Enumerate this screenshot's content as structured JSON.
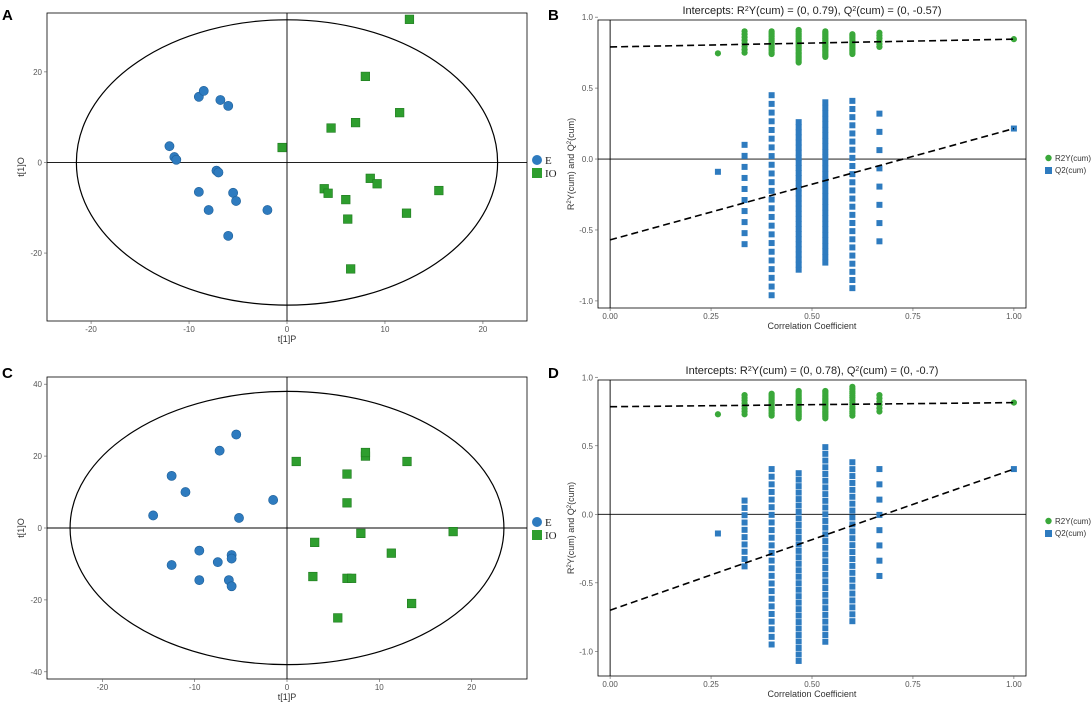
{
  "colors": {
    "group_E": "#2e7bbf",
    "group_IO": "#2e9e2e",
    "r2y": "#3aa83a",
    "q2": "#2e7bbf",
    "frame": "#000000"
  },
  "chart_data": [
    {
      "panel": "A",
      "type": "scatter",
      "xlabel": "t[1]P",
      "ylabel": "t[1]O",
      "xlim": [
        -24.5,
        24.5
      ],
      "ylim": [
        -35,
        33
      ],
      "xticks": [
        -20,
        -10,
        0,
        10,
        20
      ],
      "yticks": [
        -20,
        0,
        20
      ],
      "ellipse": {
        "rx": 21.5,
        "ry": 31.5
      },
      "legend": [
        "E",
        "IO"
      ],
      "series": [
        {
          "name": "E",
          "marker": "circle",
          "points": [
            [
              -12,
              3.6
            ],
            [
              -11.5,
              1.2
            ],
            [
              -11.3,
              0.6
            ],
            [
              -9,
              14.5
            ],
            [
              -8.5,
              15.8
            ],
            [
              -6.8,
              13.8
            ],
            [
              -6,
              12.5
            ],
            [
              -7.2,
              -1.8
            ],
            [
              -7,
              -2.2
            ],
            [
              -9,
              -6.5
            ],
            [
              -8,
              -10.5
            ],
            [
              -5.5,
              -6.7
            ],
            [
              -5.2,
              -8.5
            ],
            [
              -2,
              -10.5
            ],
            [
              -6,
              -16.2
            ]
          ]
        },
        {
          "name": "IO",
          "marker": "square",
          "points": [
            [
              -0.5,
              3.3
            ],
            [
              4.5,
              7.6
            ],
            [
              7,
              8.8
            ],
            [
              8,
              19
            ],
            [
              11.5,
              11
            ],
            [
              12.5,
              31.6
            ],
            [
              3.8,
              -5.8
            ],
            [
              4.2,
              -6.8
            ],
            [
              6,
              -8.2
            ],
            [
              6.2,
              -12.5
            ],
            [
              8.5,
              -3.5
            ],
            [
              9.2,
              -4.7
            ],
            [
              12.2,
              -11.2
            ],
            [
              15.5,
              -6.2
            ],
            [
              6.5,
              -23.5
            ]
          ]
        }
      ]
    },
    {
      "panel": "B",
      "type": "scatter",
      "title_prefix": "Intercepts: R",
      "title_sup1": "2",
      "title_mid": "Y(cum) = (0, 0.79), Q",
      "title_sup2": "2",
      "title_suffix": "(cum) = (0, -0.57)",
      "xlabel": "Correlation Coefficient",
      "ylabel_parts": [
        "R",
        "2",
        "Y(cum) and Q",
        "2",
        "(cum)"
      ],
      "xlim": [
        -0.03,
        1.03
      ],
      "ylim": [
        -1.05,
        0.98
      ],
      "xticks": [
        "0.00",
        "0.25",
        "0.50",
        "0.75",
        "1.00"
      ],
      "yticks": [
        "-1.0",
        "-0.5",
        "0.0",
        "0.5",
        "1.0"
      ],
      "legend": [
        "R2Y(cum)",
        "Q2(cum)"
      ],
      "r2y_line": {
        "intercept": 0.79,
        "end": 0.845
      },
      "q2_line": {
        "intercept": -0.57,
        "end": 0.215
      },
      "r2y_columns": [
        {
          "x": 0.267,
          "values": [
            0.745
          ]
        },
        {
          "x": 0.333,
          "min": 0.75,
          "max": 0.9,
          "n": 8
        },
        {
          "x": 0.4,
          "min": 0.74,
          "max": 0.9,
          "n": 14
        },
        {
          "x": 0.467,
          "min": 0.68,
          "max": 0.91,
          "n": 20
        },
        {
          "x": 0.533,
          "min": 0.72,
          "max": 0.9,
          "n": 20
        },
        {
          "x": 0.6,
          "min": 0.74,
          "max": 0.88,
          "n": 14
        },
        {
          "x": 0.667,
          "min": 0.79,
          "max": 0.89,
          "n": 6
        },
        {
          "x": 1.0,
          "values": [
            0.845
          ]
        }
      ],
      "q2_columns": [
        {
          "x": 0.267,
          "values": [
            -0.09
          ]
        },
        {
          "x": 0.333,
          "min": -0.6,
          "max": 0.1,
          "n": 10
        },
        {
          "x": 0.4,
          "min": -0.96,
          "max": 0.45,
          "n": 24
        },
        {
          "x": 0.467,
          "min": -0.78,
          "max": 0.26,
          "n": 30
        },
        {
          "x": 0.533,
          "min": -0.73,
          "max": 0.4,
          "n": 30
        },
        {
          "x": 0.6,
          "min": -0.91,
          "max": 0.41,
          "n": 24
        },
        {
          "x": 0.667,
          "min": -0.58,
          "max": 0.32,
          "n": 8
        },
        {
          "x": 1.0,
          "values": [
            0.215
          ]
        }
      ]
    },
    {
      "panel": "C",
      "type": "scatter",
      "xlabel": "t[1]P",
      "ylabel": "t[1]O",
      "xlim": [
        -26,
        26
      ],
      "ylim": [
        -42,
        42
      ],
      "xticks": [
        -20,
        -10,
        0,
        10,
        20
      ],
      "yticks": [
        -40,
        -20,
        0,
        20,
        40
      ],
      "ellipse": {
        "rx": 23.5,
        "ry": 38
      },
      "legend": [
        "E",
        "IO"
      ],
      "series": [
        {
          "name": "E",
          "marker": "circle",
          "points": [
            [
              -14.5,
              3.5
            ],
            [
              -12.5,
              14.5
            ],
            [
              -11,
              10
            ],
            [
              -7.3,
              21.5
            ],
            [
              -5.5,
              26
            ],
            [
              -5.2,
              2.8
            ],
            [
              -1.5,
              7.8
            ],
            [
              -9.5,
              -6.3
            ],
            [
              -12.5,
              -10.3
            ],
            [
              -7.5,
              -9.5
            ],
            [
              -6,
              -7.5
            ],
            [
              -6,
              -8.5
            ],
            [
              -9.5,
              -14.5
            ],
            [
              -6.3,
              -14.5
            ],
            [
              -6,
              -16.2
            ]
          ]
        },
        {
          "name": "IO",
          "marker": "square",
          "points": [
            [
              1,
              18.5
            ],
            [
              6.5,
              15
            ],
            [
              8.5,
              20
            ],
            [
              8.5,
              21
            ],
            [
              13,
              18.5
            ],
            [
              6.5,
              7
            ],
            [
              18,
              -1
            ],
            [
              3,
              -4
            ],
            [
              8,
              -1.5
            ],
            [
              11.3,
              -7
            ],
            [
              2.8,
              -13.5
            ],
            [
              6.5,
              -14
            ],
            [
              7,
              -14
            ],
            [
              13.5,
              -21
            ],
            [
              5.5,
              -25
            ]
          ]
        }
      ]
    },
    {
      "panel": "D",
      "type": "scatter",
      "title_prefix": "Intercepts: R",
      "title_sup1": "2",
      "title_mid": "Y(cum) = (0, 0.78), Q",
      "title_sup2": "2",
      "title_suffix": "(cum) = (0, -0.7)",
      "xlabel": "Correlation Coefficient",
      "ylabel_parts": [
        "R",
        "2",
        "Y(cum) and Q",
        "2",
        "(cum)"
      ],
      "xlim": [
        -0.03,
        1.03
      ],
      "ylim": [
        -1.18,
        0.98
      ],
      "xticks": [
        "0.00",
        "0.25",
        "0.50",
        "0.75",
        "1.00"
      ],
      "yticks": [
        "-1.0",
        "-0.5",
        "0.0",
        "0.5",
        "1.0"
      ],
      "legend": [
        "R2Y(cum)",
        "Q2(cum)"
      ],
      "r2y_line": {
        "intercept": 0.785,
        "end": 0.815
      },
      "q2_line": {
        "intercept": -0.7,
        "end": 0.33
      },
      "r2y_columns": [
        {
          "x": 0.267,
          "values": [
            0.73
          ]
        },
        {
          "x": 0.333,
          "min": 0.73,
          "max": 0.87,
          "n": 8
        },
        {
          "x": 0.4,
          "min": 0.72,
          "max": 0.88,
          "n": 14
        },
        {
          "x": 0.467,
          "min": 0.7,
          "max": 0.9,
          "n": 20
        },
        {
          "x": 0.533,
          "min": 0.7,
          "max": 0.9,
          "n": 20
        },
        {
          "x": 0.6,
          "min": 0.72,
          "max": 0.93,
          "n": 14
        },
        {
          "x": 0.667,
          "min": 0.75,
          "max": 0.87,
          "n": 6
        },
        {
          "x": 1.0,
          "values": [
            0.815
          ]
        }
      ],
      "q2_columns": [
        {
          "x": 0.267,
          "values": [
            -0.14
          ]
        },
        {
          "x": 0.333,
          "min": -0.38,
          "max": 0.1,
          "n": 10
        },
        {
          "x": 0.4,
          "min": -0.95,
          "max": 0.33,
          "n": 24
        },
        {
          "x": 0.467,
          "min": -1.07,
          "max": 0.3,
          "n": 30
        },
        {
          "x": 0.533,
          "min": -0.93,
          "max": 0.49,
          "n": 30
        },
        {
          "x": 0.6,
          "min": -0.78,
          "max": 0.38,
          "n": 24
        },
        {
          "x": 0.667,
          "min": -0.45,
          "max": 0.33,
          "n": 8
        },
        {
          "x": 1.0,
          "values": [
            0.33
          ]
        }
      ]
    }
  ]
}
